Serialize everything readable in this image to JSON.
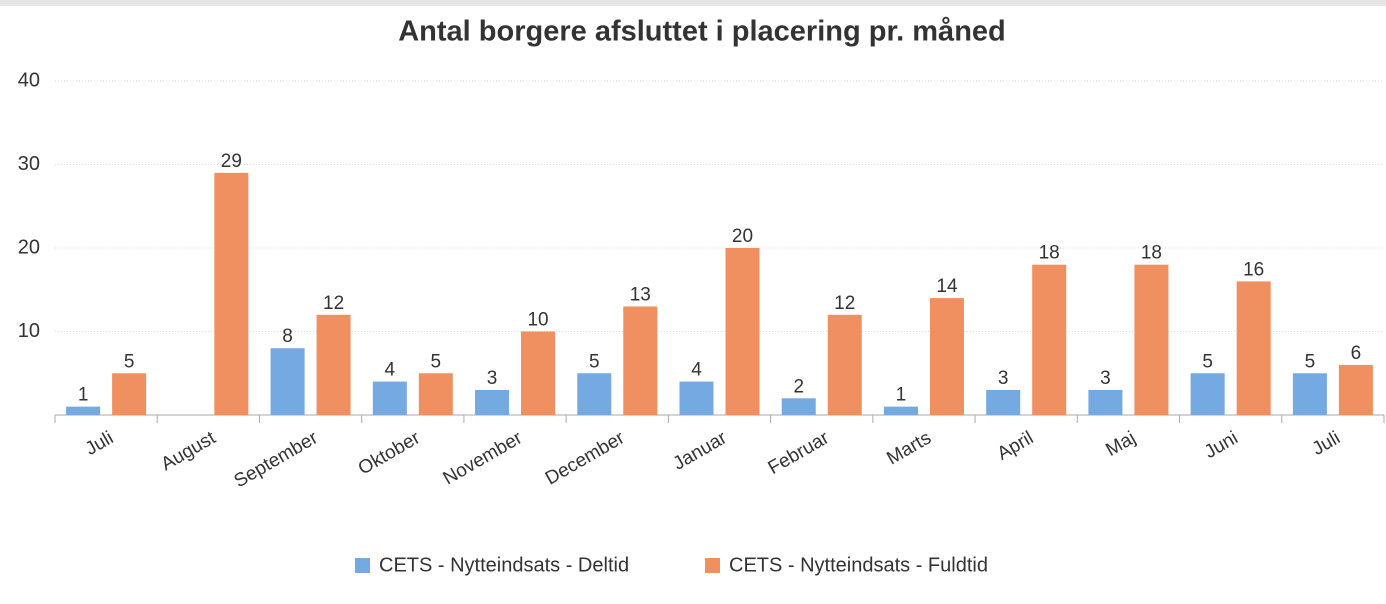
{
  "chart_data": {
    "type": "bar",
    "title": "Antal borgere afsluttet i placering pr. måned",
    "categories": [
      "Juli",
      "August",
      "September",
      "Oktober",
      "November",
      "December",
      "Januar",
      "Februar",
      "Marts",
      "April",
      "Maj",
      "Juni",
      "Juli"
    ],
    "series": [
      {
        "name": "CETS - Nytteindsats - Deltid",
        "color": "#74a9e1",
        "values": [
          1,
          null,
          8,
          4,
          3,
          5,
          4,
          2,
          1,
          3,
          3,
          5,
          5
        ]
      },
      {
        "name": "CETS - Nytteindsats - Fuldtid",
        "color": "#f08f5f",
        "values": [
          5,
          29,
          12,
          5,
          10,
          13,
          20,
          12,
          14,
          18,
          18,
          16,
          6
        ]
      }
    ],
    "ylim": [
      0,
      40
    ],
    "yticks": [
      10,
      20,
      30,
      40
    ],
    "grid": true,
    "legend": "bottom"
  }
}
